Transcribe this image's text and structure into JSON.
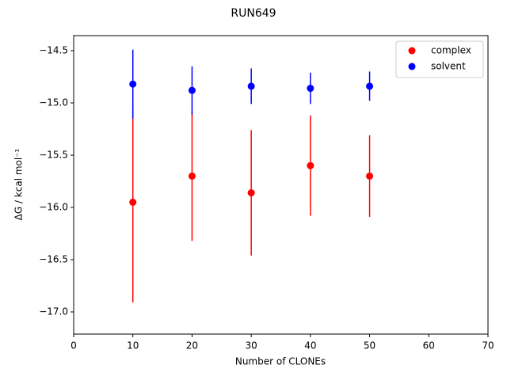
{
  "chart_data": {
    "type": "errorbar-scatter",
    "title": "RUN649",
    "xlabel": "Number of CLONEs",
    "ylabel": "ΔG / kcal mol⁻¹",
    "series": [
      {
        "name": "complex",
        "color": "#ff0000",
        "x": [
          10,
          20,
          30,
          40,
          50
        ],
        "values": [
          -15.95,
          -15.7,
          -15.86,
          -15.6,
          -15.7
        ],
        "errors": [
          0.96,
          0.62,
          0.6,
          0.48,
          0.39
        ]
      },
      {
        "name": "solvent",
        "color": "#0000ff",
        "x": [
          10,
          20,
          30,
          40,
          50
        ],
        "values": [
          -14.82,
          -14.88,
          -14.84,
          -14.86,
          -14.84
        ],
        "errors": [
          0.33,
          0.23,
          0.17,
          0.15,
          0.14
        ]
      }
    ],
    "xlim": [
      0,
      70
    ],
    "xticks": [
      0,
      10,
      20,
      30,
      40,
      50,
      60,
      70
    ],
    "ylim": [
      -17.212,
      -14.356
    ],
    "yticks": [
      {
        "value": -14.5,
        "label": "−14.5"
      },
      {
        "value": -15.0,
        "label": "−15.0"
      },
      {
        "value": -15.5,
        "label": "−15.5"
      },
      {
        "value": -16.0,
        "label": "−16.0"
      },
      {
        "value": -16.5,
        "label": "−16.5"
      },
      {
        "value": -17.0,
        "label": "−17.0"
      }
    ],
    "grid": false,
    "legend": "upper right"
  }
}
